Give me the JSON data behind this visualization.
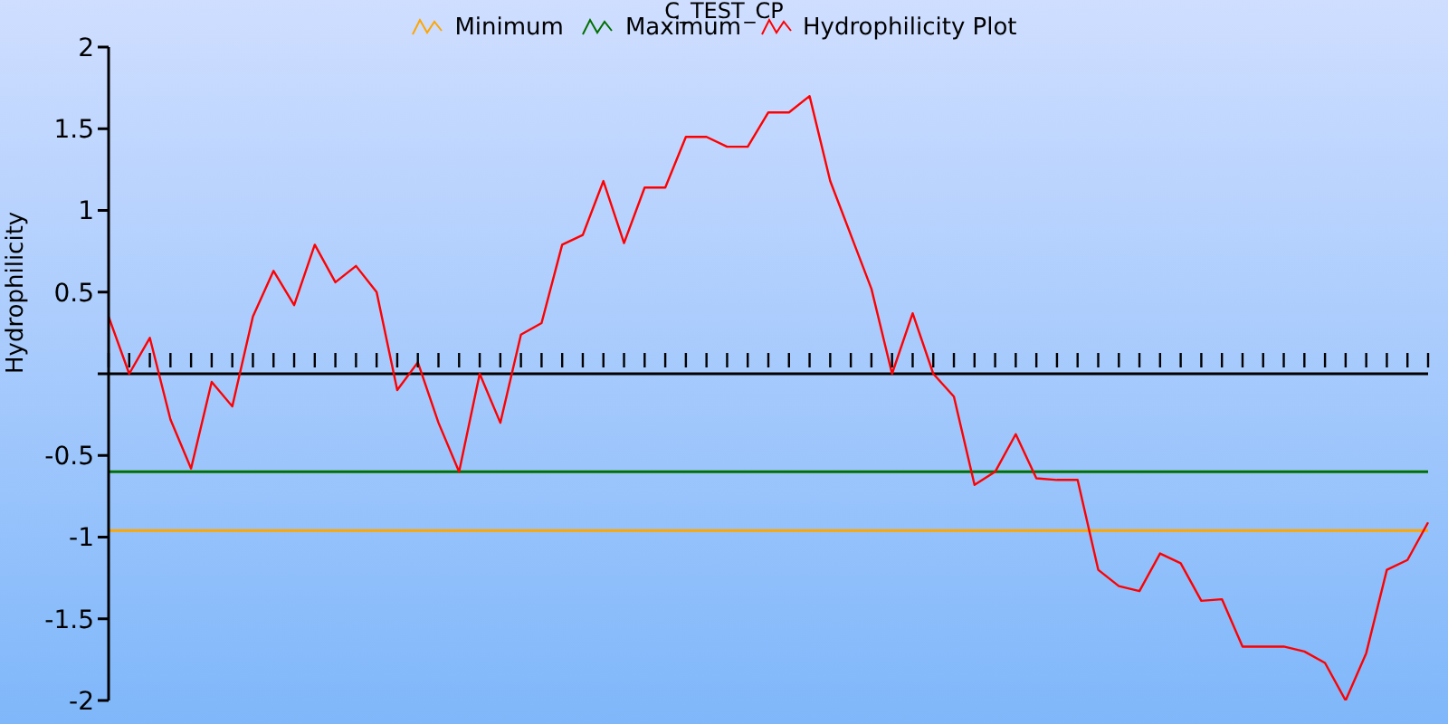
{
  "chart_data": {
    "type": "line",
    "title": "C_TEST_CP",
    "ylabel": "Hydrophilicity",
    "categories": [
      null,
      null,
      null,
      null,
      null,
      null,
      null,
      null,
      null,
      null,
      null,
      null,
      null,
      null,
      null,
      null,
      null,
      null,
      null,
      null,
      null,
      null,
      null,
      null,
      null,
      null,
      null,
      null,
      null,
      null,
      null,
      null,
      null,
      null,
      null,
      null,
      null,
      null,
      null,
      null,
      null,
      null,
      null,
      null,
      null,
      null,
      null,
      null,
      null,
      null,
      null,
      null,
      null,
      null,
      null,
      null,
      null,
      null,
      null,
      null,
      null,
      null,
      null,
      null,
      null
    ],
    "series": [
      {
        "name": "Minimum",
        "color": "#ffa500",
        "values": [
          -0.96,
          -0.96,
          -0.96,
          -0.96,
          -0.96,
          -0.96,
          -0.96,
          -0.96,
          -0.96,
          -0.96,
          -0.96,
          -0.96,
          -0.96,
          -0.96,
          -0.96,
          -0.96,
          -0.96,
          -0.96,
          -0.96,
          -0.96,
          -0.96,
          -0.96,
          -0.96,
          -0.96,
          -0.96,
          -0.96,
          -0.96,
          -0.96,
          -0.96,
          -0.96,
          -0.96,
          -0.96,
          -0.96,
          -0.96,
          -0.96,
          -0.96,
          -0.96,
          -0.96,
          -0.96,
          -0.96,
          -0.96,
          -0.96,
          -0.96,
          -0.96,
          -0.96,
          -0.96,
          -0.96,
          -0.96,
          -0.96,
          -0.96,
          -0.96,
          -0.96,
          -0.96,
          -0.96,
          -0.96,
          -0.96,
          -0.96,
          -0.96,
          -0.96,
          -0.96,
          -0.96,
          -0.96,
          -0.96,
          -0.96,
          -0.96
        ]
      },
      {
        "name": "Maximum",
        "color": "#007000",
        "values": [
          -0.6,
          -0.6,
          -0.6,
          -0.6,
          -0.6,
          -0.6,
          -0.6,
          -0.6,
          -0.6,
          -0.6,
          -0.6,
          -0.6,
          -0.6,
          -0.6,
          -0.6,
          -0.6,
          -0.6,
          -0.6,
          -0.6,
          -0.6,
          -0.6,
          -0.6,
          -0.6,
          -0.6,
          -0.6,
          -0.6,
          -0.6,
          -0.6,
          -0.6,
          -0.6,
          -0.6,
          -0.6,
          -0.6,
          -0.6,
          -0.6,
          -0.6,
          -0.6,
          -0.6,
          -0.6,
          -0.6,
          -0.6,
          -0.6,
          -0.6,
          -0.6,
          -0.6,
          -0.6,
          -0.6,
          -0.6,
          -0.6,
          -0.6,
          -0.6,
          -0.6,
          -0.6,
          -0.6,
          -0.6,
          -0.6,
          -0.6,
          -0.6,
          -0.6,
          -0.6,
          -0.6,
          -0.6,
          -0.6,
          -0.6,
          -0.6
        ]
      },
      {
        "name": "Hydrophilicity Plot",
        "color": "#ff0000",
        "values": [
          0.35,
          0.0,
          0.22,
          -0.28,
          -0.58,
          -0.05,
          -0.2,
          0.35,
          0.63,
          0.42,
          0.79,
          0.56,
          0.66,
          0.5,
          -0.1,
          0.07,
          -0.3,
          -0.6,
          0.0,
          -0.3,
          0.24,
          0.31,
          0.79,
          0.85,
          1.18,
          0.8,
          1.14,
          1.14,
          1.45,
          1.45,
          1.39,
          1.39,
          1.6,
          1.6,
          1.7,
          1.18,
          0.85,
          0.52,
          0.0,
          0.37,
          0.0,
          -0.14,
          -0.68,
          -0.6,
          -0.37,
          -0.64,
          -0.65,
          -0.65,
          -1.2,
          -1.3,
          -1.33,
          -1.1,
          -1.16,
          -1.39,
          -1.38,
          -1.67,
          -1.67,
          -1.67,
          -1.7,
          -1.77,
          -2.0,
          -1.71,
          -1.2,
          -1.14,
          -0.91
        ]
      }
    ],
    "ylim": [
      -2,
      2
    ],
    "yticks": [
      -2,
      -1.5,
      -1,
      -0.5,
      {
        "value": 0,
        "label": null
      },
      0.5,
      1,
      1.5,
      2
    ],
    "ref_lines": [
      {
        "axis": "y",
        "value": 0,
        "color": "#000000"
      }
    ],
    "legend": "top",
    "marker": "none",
    "line_style": "solid"
  }
}
